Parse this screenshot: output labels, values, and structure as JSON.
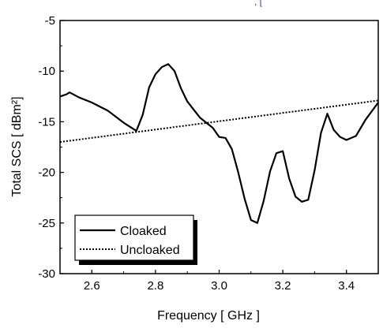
{
  "chart_data": {
    "type": "line",
    "xlabel": "Frequency [ GHz ]",
    "ylabel": "Total SCS [ dBm²]",
    "xlim": [
      2.5,
      3.5
    ],
    "ylim": [
      -30,
      -5
    ],
    "xticks": [
      2.6,
      2.8,
      3.0,
      3.2,
      3.4
    ],
    "yticks": [
      -30,
      -25,
      -20,
      -15,
      -10,
      -5
    ],
    "xtick_labels": [
      "2.6",
      "2.8",
      "3.0",
      "3.2",
      "3.4"
    ],
    "ytick_labels": [
      "-30",
      "-25",
      "-20",
      "-15",
      "-10",
      "-5"
    ],
    "grid": false,
    "legend_position": "bottom-left",
    "series": [
      {
        "name": "Cloaked",
        "style": "solid",
        "color": "#000000",
        "x": [
          2.5,
          2.52,
          2.53,
          2.56,
          2.6,
          2.65,
          2.7,
          2.74,
          2.76,
          2.78,
          2.8,
          2.82,
          2.84,
          2.86,
          2.88,
          2.9,
          2.94,
          2.98,
          3.0,
          3.02,
          3.04,
          3.06,
          3.08,
          3.1,
          3.12,
          3.14,
          3.16,
          3.18,
          3.2,
          3.22,
          3.24,
          3.26,
          3.28,
          3.3,
          3.32,
          3.34,
          3.36,
          3.38,
          3.4,
          3.43,
          3.46,
          3.5
        ],
        "y": [
          -12.5,
          -12.3,
          -12.1,
          -12.6,
          -13.1,
          -13.9,
          -15.1,
          -15.9,
          -14.3,
          -11.6,
          -10.3,
          -9.6,
          -9.3,
          -10.0,
          -11.7,
          -13.0,
          -14.6,
          -15.6,
          -16.5,
          -16.6,
          -17.7,
          -20.0,
          -22.6,
          -24.7,
          -25.0,
          -22.8,
          -19.9,
          -18.1,
          -17.9,
          -20.6,
          -22.4,
          -22.9,
          -22.7,
          -19.8,
          -16.1,
          -14.2,
          -15.8,
          -16.5,
          -16.8,
          -16.4,
          -14.8,
          -13.1
        ]
      },
      {
        "name": "Uncloaked",
        "style": "dotted",
        "color": "#000000",
        "x": [
          2.5,
          3.5
        ],
        "y": [
          -17.0,
          -12.9
        ]
      }
    ]
  }
}
